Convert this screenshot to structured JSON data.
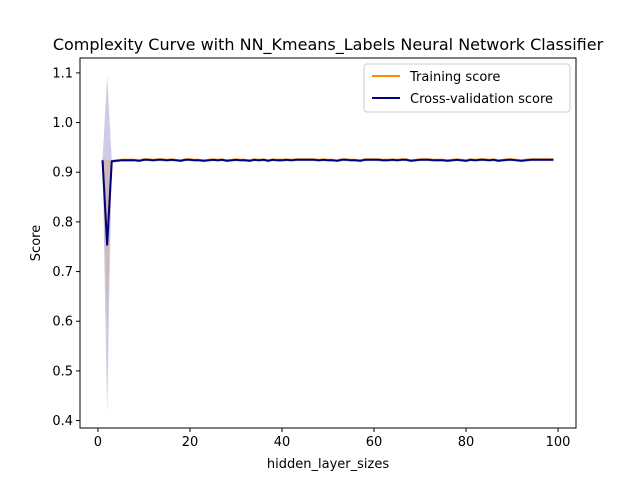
{
  "chart_data": {
    "type": "line",
    "title": "Complexity Curve with NN_Kmeans_Labels Neural Network Classifier",
    "xlabel": "hidden_layer_sizes",
    "ylabel": "Score",
    "xlim": [
      -3.9,
      103.9
    ],
    "ylim": [
      0.385,
      1.13
    ],
    "xticks": [
      0,
      20,
      40,
      60,
      80,
      100
    ],
    "yticks": [
      0.4,
      0.5,
      0.6,
      0.7,
      0.8,
      0.9,
      1.0,
      1.1
    ],
    "grid": false,
    "legend_position": "top-right",
    "x": [
      1,
      2,
      3,
      4,
      5,
      6,
      7,
      8,
      9,
      10,
      11,
      12,
      13,
      14,
      15,
      16,
      17,
      18,
      19,
      20,
      21,
      22,
      23,
      24,
      25,
      26,
      27,
      28,
      29,
      30,
      31,
      32,
      33,
      34,
      35,
      36,
      37,
      38,
      39,
      40,
      41,
      42,
      43,
      44,
      45,
      46,
      47,
      48,
      49,
      50,
      51,
      52,
      53,
      54,
      55,
      56,
      57,
      58,
      59,
      60,
      61,
      62,
      63,
      64,
      65,
      66,
      67,
      68,
      69,
      70,
      71,
      72,
      73,
      74,
      75,
      76,
      77,
      78,
      79,
      80,
      81,
      82,
      83,
      84,
      85,
      86,
      87,
      88,
      89,
      90,
      91,
      92,
      93,
      94,
      95,
      96,
      97,
      98,
      99
    ],
    "series": [
      {
        "name": "Training score",
        "color": "#ff8c00",
        "band_color": "#ff8c00",
        "values": [
          0.925,
          0.755,
          0.922,
          0.924,
          0.925,
          0.925,
          0.925,
          0.925,
          0.924,
          0.926,
          0.926,
          0.925,
          0.926,
          0.926,
          0.925,
          0.926,
          0.925,
          0.924,
          0.926,
          0.926,
          0.925,
          0.925,
          0.924,
          0.925,
          0.926,
          0.925,
          0.926,
          0.924,
          0.925,
          0.926,
          0.925,
          0.925,
          0.924,
          0.926,
          0.925,
          0.926,
          0.924,
          0.926,
          0.925,
          0.925,
          0.926,
          0.925,
          0.926,
          0.926,
          0.926,
          0.926,
          0.926,
          0.925,
          0.926,
          0.925,
          0.925,
          0.924,
          0.926,
          0.926,
          0.925,
          0.925,
          0.924,
          0.926,
          0.926,
          0.926,
          0.926,
          0.925,
          0.925,
          0.926,
          0.925,
          0.926,
          0.926,
          0.924,
          0.925,
          0.926,
          0.926,
          0.926,
          0.925,
          0.925,
          0.925,
          0.924,
          0.925,
          0.926,
          0.925,
          0.924,
          0.926,
          0.925,
          0.926,
          0.926,
          0.925,
          0.926,
          0.924,
          0.925,
          0.926,
          0.926,
          0.925,
          0.924,
          0.925,
          0.926,
          0.926,
          0.926,
          0.926,
          0.926,
          0.926
        ],
        "std": [
          0.001,
          0.17,
          0.002,
          0.002,
          0.002,
          0.002,
          0.002,
          0.002,
          0.002,
          0.002,
          0.002,
          0.002,
          0.002,
          0.002,
          0.002,
          0.002,
          0.002,
          0.002,
          0.002,
          0.002,
          0.002,
          0.002,
          0.002,
          0.002,
          0.002,
          0.002,
          0.002,
          0.002,
          0.002,
          0.002,
          0.002,
          0.002,
          0.002,
          0.002,
          0.002,
          0.002,
          0.002,
          0.002,
          0.002,
          0.002,
          0.002,
          0.002,
          0.002,
          0.002,
          0.002,
          0.002,
          0.002,
          0.002,
          0.002,
          0.002,
          0.002,
          0.002,
          0.002,
          0.002,
          0.002,
          0.002,
          0.002,
          0.002,
          0.002,
          0.002,
          0.002,
          0.002,
          0.002,
          0.002,
          0.002,
          0.002,
          0.002,
          0.002,
          0.002,
          0.002,
          0.002,
          0.002,
          0.002,
          0.002,
          0.002,
          0.002,
          0.002,
          0.002,
          0.002,
          0.002,
          0.002,
          0.002,
          0.002,
          0.002,
          0.002,
          0.002,
          0.002,
          0.002,
          0.002,
          0.002,
          0.002,
          0.002,
          0.002,
          0.002,
          0.002,
          0.002,
          0.002,
          0.002,
          0.002
        ]
      },
      {
        "name": "Cross-validation score",
        "color": "#000080",
        "band_color": "#000080",
        "values": [
          0.924,
          0.754,
          0.922,
          0.923,
          0.924,
          0.924,
          0.924,
          0.924,
          0.923,
          0.925,
          0.925,
          0.924,
          0.925,
          0.925,
          0.924,
          0.925,
          0.924,
          0.923,
          0.925,
          0.925,
          0.924,
          0.924,
          0.923,
          0.924,
          0.925,
          0.924,
          0.925,
          0.923,
          0.924,
          0.925,
          0.924,
          0.924,
          0.923,
          0.925,
          0.924,
          0.925,
          0.923,
          0.925,
          0.924,
          0.924,
          0.925,
          0.924,
          0.925,
          0.925,
          0.925,
          0.925,
          0.925,
          0.924,
          0.925,
          0.924,
          0.924,
          0.923,
          0.925,
          0.925,
          0.924,
          0.924,
          0.923,
          0.925,
          0.925,
          0.925,
          0.925,
          0.924,
          0.924,
          0.925,
          0.924,
          0.925,
          0.925,
          0.923,
          0.924,
          0.925,
          0.925,
          0.925,
          0.924,
          0.924,
          0.924,
          0.923,
          0.924,
          0.925,
          0.924,
          0.923,
          0.925,
          0.924,
          0.925,
          0.925,
          0.924,
          0.925,
          0.923,
          0.924,
          0.925,
          0.925,
          0.924,
          0.923,
          0.924,
          0.925,
          0.925,
          0.925,
          0.925,
          0.925,
          0.925
        ],
        "std": [
          0.002,
          0.34,
          0.003,
          0.003,
          0.003,
          0.003,
          0.003,
          0.003,
          0.003,
          0.003,
          0.003,
          0.003,
          0.003,
          0.003,
          0.003,
          0.003,
          0.003,
          0.003,
          0.003,
          0.003,
          0.003,
          0.003,
          0.003,
          0.003,
          0.003,
          0.003,
          0.003,
          0.003,
          0.003,
          0.003,
          0.003,
          0.003,
          0.003,
          0.003,
          0.003,
          0.003,
          0.003,
          0.003,
          0.003,
          0.003,
          0.003,
          0.003,
          0.003,
          0.003,
          0.003,
          0.003,
          0.003,
          0.003,
          0.003,
          0.003,
          0.003,
          0.003,
          0.003,
          0.003,
          0.003,
          0.003,
          0.003,
          0.003,
          0.003,
          0.003,
          0.003,
          0.003,
          0.003,
          0.003,
          0.003,
          0.003,
          0.003,
          0.003,
          0.003,
          0.003,
          0.003,
          0.003,
          0.003,
          0.003,
          0.003,
          0.003,
          0.003,
          0.003,
          0.003,
          0.003,
          0.003,
          0.003,
          0.003,
          0.003,
          0.003,
          0.003,
          0.003,
          0.003,
          0.003,
          0.003,
          0.003,
          0.003,
          0.003,
          0.003,
          0.003,
          0.003,
          0.003,
          0.003,
          0.003
        ]
      }
    ]
  }
}
